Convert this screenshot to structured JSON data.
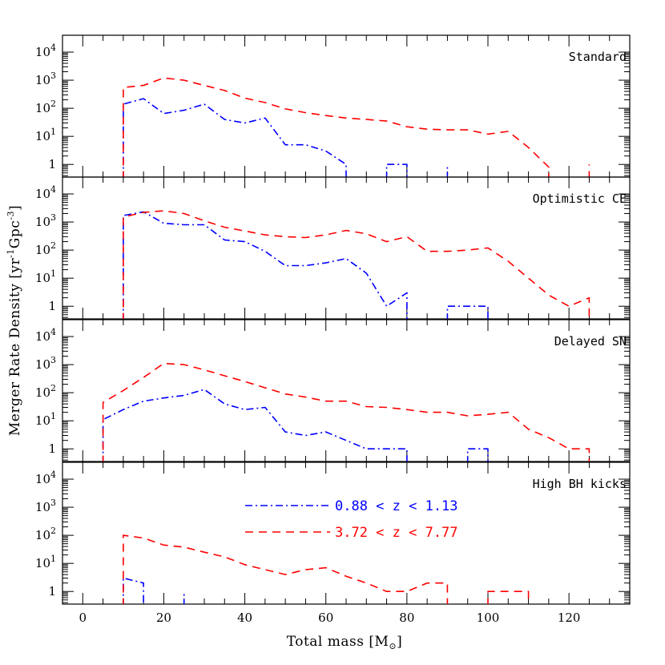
{
  "chart_data": {
    "type": "line",
    "xlabel": "Total mass [M",
    "xlabel_sub": "⊙",
    "xlabel_close": "]",
    "ylabel": "Merger Rate Density [yr",
    "ylabel_exp1": "-1",
    "ylabel_mid": "Gpc",
    "ylabel_exp2": "-3",
    "ylabel_close": "]",
    "xlim": [
      -5,
      135
    ],
    "ylim_log10": [
      -0.45,
      4.6
    ],
    "y_scale": "log",
    "x_ticks": [
      0,
      20,
      40,
      60,
      80,
      100,
      120
    ],
    "x_tick_labels": [
      "0",
      "20",
      "40",
      "60",
      "80",
      "100",
      "120"
    ],
    "y_tick_labels": [
      {
        "base": "1",
        "exp": ""
      },
      {
        "base": "10",
        "exp": "1"
      },
      {
        "base": "10",
        "exp": "2"
      },
      {
        "base": "10",
        "exp": "3"
      },
      {
        "base": "10",
        "exp": "4"
      }
    ],
    "legend": {
      "placement": "inside-bottom-panel-center",
      "entries": [
        {
          "label": "0.88 < z < 1.13",
          "color": "#0000ff",
          "style": "dashdot"
        },
        {
          "label": "3.72 < z < 7.77",
          "color": "#ff0000",
          "style": "dashed"
        }
      ]
    },
    "panels": [
      {
        "title": "Standard",
        "series": [
          {
            "color": "#0000ff",
            "style": "dashdot",
            "segments": [
              [
                [
                  10,
                  0.3
                ],
                [
                  10,
                  140
                ],
                [
                  15,
                  220
                ],
                [
                  20,
                  65
                ],
                [
                  25,
                  85
                ],
                [
                  30,
                  140
                ],
                [
                  35,
                  40
                ],
                [
                  40,
                  30
                ],
                [
                  45,
                  45
                ],
                [
                  50,
                  5
                ],
                [
                  55,
                  5
                ],
                [
                  60,
                  3
                ],
                [
                  65,
                  1
                ],
                [
                  65,
                  0.3
                ]
              ],
              [
                [
                  75,
                  0.3
                ],
                [
                  75,
                  1
                ],
                [
                  80,
                  1
                ],
                [
                  80,
                  0.3
                ]
              ],
              [
                [
                  90,
                  0.3
                ],
                [
                  90,
                  1
                ]
              ]
            ]
          },
          {
            "color": "#ff0000",
            "style": "dashed",
            "segments": [
              [
                [
                  10,
                  0.3
                ],
                [
                  10,
                  550
                ],
                [
                  15,
                  650
                ],
                [
                  20,
                  1200
                ],
                [
                  25,
                  1000
                ],
                [
                  30,
                  650
                ],
                [
                  35,
                  430
                ],
                [
                  40,
                  230
                ],
                [
                  45,
                  160
                ],
                [
                  50,
                  95
                ],
                [
                  55,
                  70
                ],
                [
                  60,
                  55
                ],
                [
                  65,
                  45
                ],
                [
                  70,
                  40
                ],
                [
                  75,
                  35
                ],
                [
                  80,
                  22
                ],
                [
                  85,
                  18
                ],
                [
                  90,
                  17
                ],
                [
                  95,
                  17
                ],
                [
                  100,
                  12
                ],
                [
                  105,
                  15
                ],
                [
                  110,
                  4
                ],
                [
                  115,
                  0.8
                ],
                [
                  115,
                  0.3
                ]
              ],
              [
                [
                  125,
                  0.3
                ],
                [
                  125,
                  1
                ]
              ]
            ]
          }
        ]
      },
      {
        "title": "Optimistic CE",
        "series": [
          {
            "color": "#0000ff",
            "style": "dashdot",
            "segments": [
              [
                [
                  10,
                  0.3
                ],
                [
                  10,
                  1700
                ],
                [
                  15,
                  2300
                ],
                [
                  20,
                  900
                ],
                [
                  25,
                  800
                ],
                [
                  30,
                  800
                ],
                [
                  35,
                  230
                ],
                [
                  40,
                  200
                ],
                [
                  45,
                  90
                ],
                [
                  50,
                  28
                ],
                [
                  55,
                  28
                ],
                [
                  60,
                  35
                ],
                [
                  65,
                  50
                ],
                [
                  70,
                  15
                ],
                [
                  75,
                  1
                ],
                [
                  80,
                  3
                ],
                [
                  80,
                  0.3
                ]
              ],
              [
                [
                  90,
                  0.3
                ],
                [
                  90,
                  1
                ],
                [
                  100,
                  1
                ],
                [
                  100,
                  0.3
                ]
              ]
            ]
          },
          {
            "color": "#ff0000",
            "style": "dashed",
            "segments": [
              [
                [
                  10,
                  0.3
                ],
                [
                  10,
                  1500
                ],
                [
                  15,
                  2200
                ],
                [
                  20,
                  2500
                ],
                [
                  25,
                  2000
                ],
                [
                  30,
                  1100
                ],
                [
                  35,
                  650
                ],
                [
                  40,
                  480
                ],
                [
                  45,
                  350
                ],
                [
                  50,
                  300
                ],
                [
                  55,
                  280
                ],
                [
                  60,
                  350
                ],
                [
                  65,
                  500
                ],
                [
                  70,
                  380
                ],
                [
                  75,
                  200
                ],
                [
                  80,
                  300
                ],
                [
                  85,
                  90
                ],
                [
                  90,
                  90
                ],
                [
                  95,
                  100
                ],
                [
                  100,
                  120
                ],
                [
                  105,
                  40
                ],
                [
                  110,
                  10
                ],
                [
                  115,
                  2.5
                ],
                [
                  120,
                  1
                ],
                [
                  125,
                  2
                ],
                [
                  125,
                  0.3
                ]
              ]
            ]
          }
        ]
      },
      {
        "title": "Delayed SN",
        "series": [
          {
            "color": "#0000ff",
            "style": "dashdot",
            "segments": [
              [
                [
                  5,
                  0.3
                ],
                [
                  5,
                  11
                ],
                [
                  10,
                  25
                ],
                [
                  15,
                  50
                ],
                [
                  20,
                  65
                ],
                [
                  25,
                  80
                ],
                [
                  30,
                  130
                ],
                [
                  35,
                  40
                ],
                [
                  40,
                  25
                ],
                [
                  45,
                  30
                ],
                [
                  50,
                  4
                ],
                [
                  55,
                  3
                ],
                [
                  60,
                  4
                ],
                [
                  65,
                  2
                ],
                [
                  70,
                  1
                ],
                [
                  75,
                  1
                ],
                [
                  80,
                  1
                ],
                [
                  80,
                  0.3
                ]
              ],
              [
                [
                  95,
                  0.3
                ],
                [
                  95,
                  1
                ],
                [
                  100,
                  1
                ],
                [
                  100,
                  0.3
                ]
              ]
            ]
          },
          {
            "color": "#ff0000",
            "style": "dashed",
            "segments": [
              [
                [
                  5,
                  0.3
                ],
                [
                  5,
                  45
                ],
                [
                  10,
                  120
                ],
                [
                  15,
                  350
                ],
                [
                  20,
                  1100
                ],
                [
                  25,
                  1000
                ],
                [
                  30,
                  650
                ],
                [
                  35,
                  400
                ],
                [
                  40,
                  250
                ],
                [
                  45,
                  150
                ],
                [
                  50,
                  90
                ],
                [
                  55,
                  70
                ],
                [
                  60,
                  50
                ],
                [
                  65,
                  50
                ],
                [
                  70,
                  32
                ],
                [
                  75,
                  30
                ],
                [
                  80,
                  25
                ],
                [
                  85,
                  20
                ],
                [
                  90,
                  20
                ],
                [
                  95,
                  15
                ],
                [
                  100,
                  17
                ],
                [
                  105,
                  20
                ],
                [
                  110,
                  5
                ],
                [
                  115,
                  2.5
                ],
                [
                  120,
                  1
                ],
                [
                  125,
                  1
                ],
                [
                  125,
                  0.3
                ]
              ]
            ]
          }
        ]
      },
      {
        "title": "High BH kicks",
        "series": [
          {
            "color": "#0000ff",
            "style": "dashdot",
            "segments": [
              [
                [
                  10,
                  0.3
                ],
                [
                  10,
                  3
                ],
                [
                  15,
                  2
                ],
                [
                  15,
                  0.3
                ]
              ],
              [
                [
                  25,
                  0.3
                ],
                [
                  25,
                  1
                ]
              ]
            ]
          },
          {
            "color": "#ff0000",
            "style": "dashed",
            "segments": [
              [
                [
                  10,
                  0.3
                ],
                [
                  10,
                  100
                ],
                [
                  15,
                  80
                ],
                [
                  20,
                  45
                ],
                [
                  25,
                  38
                ],
                [
                  30,
                  25
                ],
                [
                  35,
                  17
                ],
                [
                  40,
                  9
                ],
                [
                  45,
                  6
                ],
                [
                  50,
                  4
                ],
                [
                  55,
                  6
                ],
                [
                  60,
                  7
                ],
                [
                  65,
                  3.5
                ],
                [
                  70,
                  2
                ],
                [
                  75,
                  1
                ],
                [
                  80,
                  1
                ],
                [
                  85,
                  2
                ],
                [
                  90,
                  2
                ],
                [
                  90,
                  0.3
                ]
              ],
              [
                [
                  100,
                  0.3
                ],
                [
                  100,
                  1
                ],
                [
                  110,
                  1
                ],
                [
                  110,
                  0.3
                ]
              ]
            ]
          }
        ]
      }
    ]
  }
}
